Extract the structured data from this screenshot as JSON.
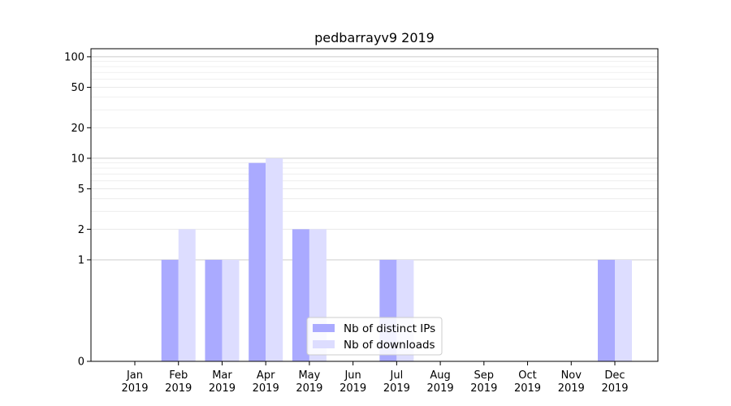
{
  "chart_data": {
    "type": "bar",
    "title": "pedbarrayv9 2019",
    "xlabel": "",
    "ylabel": "",
    "y_scale": "symlog",
    "ylim": [
      0,
      120
    ],
    "y_ticks": [
      0,
      1,
      2,
      5,
      10,
      20,
      50,
      100
    ],
    "y_tick_labels": [
      "0",
      "1",
      "2",
      "5",
      "10",
      "20",
      "50",
      "100"
    ],
    "grid": true,
    "legend_position": "bottom-center",
    "categories": [
      [
        "Jan",
        "2019"
      ],
      [
        "Feb",
        "2019"
      ],
      [
        "Mar",
        "2019"
      ],
      [
        "Apr",
        "2019"
      ],
      [
        "May",
        "2019"
      ],
      [
        "Jun",
        "2019"
      ],
      [
        "Jul",
        "2019"
      ],
      [
        "Aug",
        "2019"
      ],
      [
        "Sep",
        "2019"
      ],
      [
        "Oct",
        "2019"
      ],
      [
        "Nov",
        "2019"
      ],
      [
        "Dec",
        "2019"
      ]
    ],
    "series": [
      {
        "name": "Nb of distinct IPs",
        "color": "#aaaaff",
        "values": [
          0,
          1,
          1,
          9,
          2,
          0,
          1,
          0,
          0,
          0,
          0,
          1
        ]
      },
      {
        "name": "Nb of downloads",
        "color": "#ddddff",
        "values": [
          0,
          2,
          1,
          10,
          2,
          0,
          1,
          0,
          0,
          0,
          0,
          1
        ]
      }
    ]
  }
}
